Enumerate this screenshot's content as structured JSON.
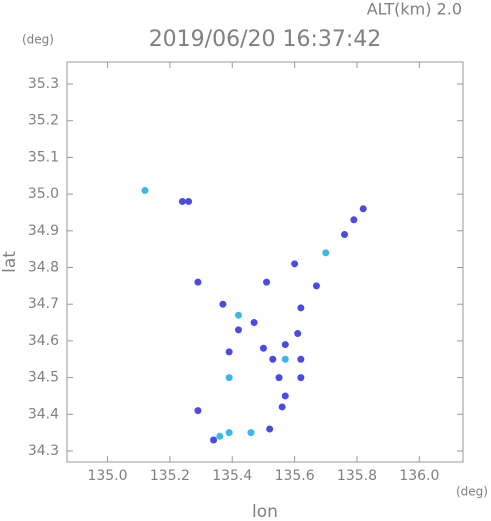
{
  "chart_data": {
    "type": "scatter",
    "title": "2019/06/20 16:37:42",
    "subtitle": "ALT(km) 2.0",
    "x_unit": "(deg)",
    "y_unit": "(deg)",
    "xlabel": "lon",
    "ylabel": "lat",
    "xlim": [
      134.87,
      136.14
    ],
    "ylim": [
      34.27,
      35.36
    ],
    "xticks": [
      {
        "value": 135,
        "label": "135.0"
      },
      135.2,
      135.4,
      135.6,
      135.8,
      {
        "value": 136,
        "label": "136.0"
      }
    ],
    "yticks": [
      34.3,
      34.4,
      34.5,
      34.6,
      34.7,
      34.8,
      34.9,
      {
        "value": 35,
        "label": "35.0"
      },
      35.1,
      35.2,
      35.3
    ],
    "series": [
      {
        "color": "#4a4ae6",
        "x": [
          135.24,
          135.26,
          135.29,
          135.76,
          135.79,
          135.82,
          135.6,
          135.67,
          135.51,
          135.37,
          135.62,
          135.55,
          135.53,
          135.57,
          135.62,
          135.62,
          135.57,
          135.29,
          135.42,
          135.47,
          135.39,
          135.5,
          135.56,
          135.34,
          135.52,
          135.61
        ],
        "y": [
          34.98,
          34.98,
          34.76,
          34.89,
          34.93,
          34.96,
          34.81,
          34.75,
          34.76,
          34.7,
          34.69,
          34.5,
          34.55,
          34.59,
          34.55,
          34.5,
          34.45,
          34.41,
          34.63,
          34.65,
          34.57,
          34.58,
          34.42,
          34.33,
          34.36,
          34.62
        ]
      },
      {
        "color": "#3ab8e8",
        "x": [
          135.12,
          135.7,
          135.39,
          135.42,
          135.57,
          135.39,
          135.46,
          135.36
        ],
        "y": [
          35.01,
          34.84,
          34.5,
          34.67,
          34.55,
          34.35,
          34.35,
          34.34
        ]
      }
    ]
  }
}
